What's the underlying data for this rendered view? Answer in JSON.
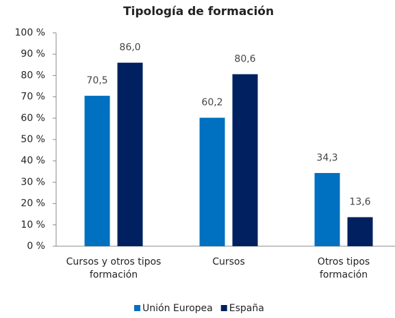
{
  "chart_data": {
    "type": "bar",
    "title": "Tipología de formación",
    "categories": [
      "Cursos y otros tipos\nformación",
      "Cursos",
      "Otros tipos\nformación"
    ],
    "series": [
      {
        "name": "Unión Europea",
        "color": "#0070c0",
        "values": [
          70.5,
          60.2,
          34.3
        ],
        "value_labels": [
          "70,5",
          "60,2",
          "34,3"
        ]
      },
      {
        "name": "España",
        "color": "#002060",
        "values": [
          86.0,
          80.6,
          13.6
        ],
        "value_labels": [
          "86,0",
          "80,6",
          "13,6"
        ]
      }
    ],
    "ylim": [
      0,
      100
    ],
    "yticks": [
      {
        "value": 0,
        "label": "0 %"
      },
      {
        "value": 10,
        "label": "10 %"
      },
      {
        "value": 20,
        "label": "20 %"
      },
      {
        "value": 30,
        "label": "30 %"
      },
      {
        "value": 40,
        "label": "40 %"
      },
      {
        "value": 50,
        "label": "50 %"
      },
      {
        "value": 60,
        "label": "60 %"
      },
      {
        "value": 70,
        "label": "70 %"
      },
      {
        "value": 80,
        "label": "80 %"
      },
      {
        "value": 90,
        "label": "90 %"
      },
      {
        "value": 100,
        "label": "100 %"
      }
    ],
    "grid": false,
    "legend": "bottom"
  }
}
